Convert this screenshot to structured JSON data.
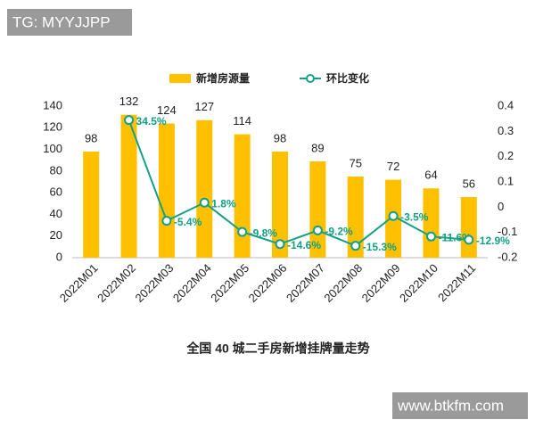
{
  "watermarks": [
    "TG: MYYJJPP",
    "www.btkfm.com"
  ],
  "chart_data": {
    "type": "bar",
    "title": "全国 40 城二手房新增挂牌量走势",
    "categories": [
      "2022M01",
      "2022M02",
      "2022M03",
      "2022M04",
      "2022M05",
      "2022M06",
      "2022M07",
      "2022M08",
      "2022M09",
      "2022M10",
      "2022M11"
    ],
    "series": [
      {
        "name": "新增房源量",
        "type": "bar",
        "color": "#ffc000",
        "values": [
          98,
          132,
          124,
          127,
          114,
          98,
          89,
          75,
          72,
          64,
          56
        ]
      },
      {
        "name": "环比变化",
        "type": "line",
        "axis": "y2",
        "color": "#13a085",
        "values": [
          null,
          0.345,
          -0.054,
          0.018,
          -0.098,
          -0.146,
          -0.092,
          -0.153,
          -0.035,
          -0.116,
          -0.129
        ],
        "value_labels": [
          null,
          "34.5%",
          "-5.4%",
          "1.8%",
          "-9.8%",
          "-14.6%",
          "-9.2%",
          "-15.3%",
          "-3.5%",
          "-11.6%",
          "-12.9%"
        ]
      }
    ],
    "ylim": [
      0,
      140
    ],
    "yticks": [
      0,
      20,
      40,
      60,
      80,
      100,
      120,
      140
    ],
    "y2lim": [
      -0.2,
      0.4
    ],
    "y2ticks": [
      -0.2,
      -0.1,
      0,
      0.1,
      0.2,
      0.3,
      0.4
    ],
    "legend": "top",
    "grid": false
  }
}
